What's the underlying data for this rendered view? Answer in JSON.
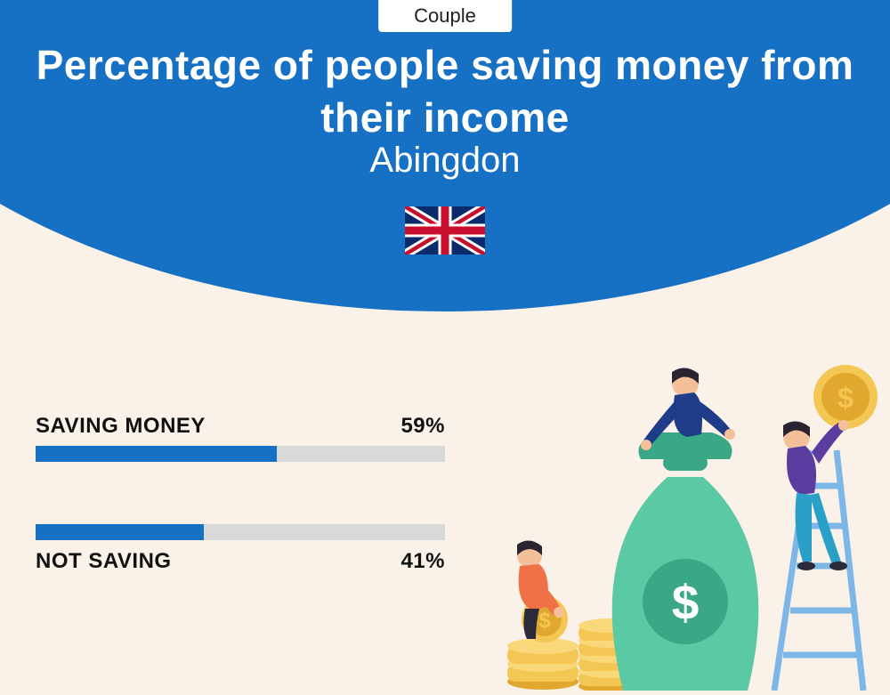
{
  "colors": {
    "hero_bg": "#1670c4",
    "page_bg": "#faf1e9",
    "bar_fill": "#1670c4",
    "bar_track": "#d9d9d9",
    "title_text": "#ffffff",
    "body_text": "#111111"
  },
  "badge": {
    "label": "Couple"
  },
  "title": "Percentage of people saving money from their income",
  "location": "Abingdon",
  "flag": "uk",
  "bars": [
    {
      "label": "SAVING MONEY",
      "value": 59,
      "display": "59%",
      "label_position": "above"
    },
    {
      "label": "NOT SAVING",
      "value": 41,
      "display": "41%",
      "label_position": "below"
    }
  ],
  "typography": {
    "title_fontsize": 46,
    "title_weight": 800,
    "subtitle_fontsize": 40,
    "bar_label_fontsize": 24,
    "bar_label_weight": 800,
    "badge_fontsize": 22
  },
  "illustration": {
    "bag_color": "#5bc9a4",
    "bag_dark": "#3aa886",
    "coin_color": "#f4c653",
    "coin_dark": "#e0a82f",
    "ladder_color": "#7cb7e8",
    "person1_shirt": "#1f3c88",
    "person1_pants": "#2a2a3a",
    "person2_shirt": "#5a3d9e",
    "person2_pants": "#2aa0c8",
    "person3_shirt": "#f07048",
    "person3_pants": "#2a2a3a",
    "skin": "#f4c09a",
    "hair": "#2a2330"
  }
}
